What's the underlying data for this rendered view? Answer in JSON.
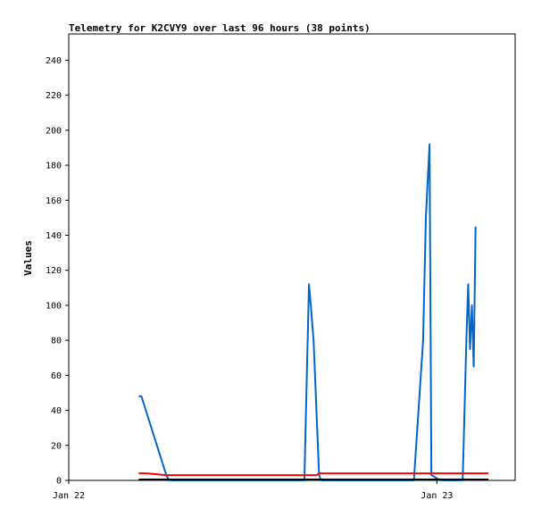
{
  "chart_data": {
    "type": "line",
    "title": "Telemetry for K2CVY9 over last 96 hours (38 points)",
    "xlabel": "",
    "ylabel": "Values",
    "ylim": [
      0,
      255
    ],
    "xlim": [
      0,
      48.5
    ],
    "y_ticks": [
      0,
      20,
      40,
      60,
      80,
      100,
      120,
      140,
      160,
      180,
      200,
      220,
      240
    ],
    "x_ticks": [
      {
        "value": 0,
        "label": "Jan 22"
      },
      {
        "value": 40,
        "label": "Jan 23"
      }
    ],
    "grid": false,
    "legend": "none",
    "series": [
      {
        "color": "#0066cc",
        "x": [
          7.6,
          7.9,
          10.6,
          10.9,
          25.6,
          26.1,
          26.3,
          26.6,
          27.2,
          27.4,
          37.5,
          38.5,
          38.8,
          39.2,
          39.4,
          40.4,
          40.9,
          42.8,
          43.2,
          43.4,
          43.6,
          43.8,
          44.0,
          44.2
        ],
        "y": [
          48,
          48,
          3,
          0,
          0,
          112,
          100,
          80,
          3,
          0,
          0,
          80,
          150,
          192,
          3,
          0,
          0,
          0,
          80,
          112,
          75,
          100,
          65,
          145
        ]
      },
      {
        "color": "#ff0000",
        "x": [
          7.6,
          8.5,
          9.5,
          10.6,
          11.5,
          26.0,
          26.9,
          27.2,
          45.6
        ],
        "y": [
          4,
          4,
          3.5,
          3,
          3,
          3,
          3,
          4,
          4
        ]
      },
      {
        "color": "#000000",
        "x": [
          7.6,
          45.6
        ],
        "y": [
          0.5,
          0.5
        ]
      }
    ]
  }
}
